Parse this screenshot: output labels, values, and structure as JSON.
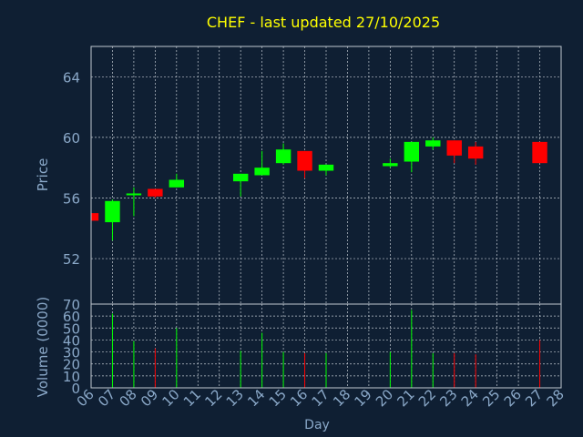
{
  "chart_data": [
    {
      "type": "candlestick",
      "title": "CHEF - last updated 27/10/2025",
      "ylabel": "Price",
      "xlabel": "",
      "ylim": [
        49,
        66
      ],
      "yticks": [
        52,
        56,
        60,
        64
      ],
      "grid": true,
      "colors": {
        "up": "#00ff00",
        "down": "#ff0000"
      },
      "candles": [
        {
          "day": "06",
          "open": 55.0,
          "high": 55.0,
          "low": 54.5,
          "close": 54.5
        },
        {
          "day": "07",
          "open": 54.4,
          "high": 55.9,
          "low": 53.2,
          "close": 55.8
        },
        {
          "day": "08",
          "open": 56.2,
          "high": 56.7,
          "low": 54.8,
          "close": 56.3
        },
        {
          "day": "09",
          "open": 56.6,
          "high": 56.6,
          "low": 56.0,
          "close": 56.1
        },
        {
          "day": "10",
          "open": 56.7,
          "high": 57.6,
          "low": 56.7,
          "close": 57.2
        },
        {
          "day": "13",
          "open": 57.1,
          "high": 57.6,
          "low": 56.1,
          "close": 57.6
        },
        {
          "day": "14",
          "open": 57.5,
          "high": 59.1,
          "low": 57.5,
          "close": 58.0
        },
        {
          "day": "15",
          "open": 58.3,
          "high": 59.6,
          "low": 58.2,
          "close": 59.2
        },
        {
          "day": "16",
          "open": 59.1,
          "high": 59.1,
          "low": 57.3,
          "close": 57.8
        },
        {
          "day": "17",
          "open": 57.8,
          "high": 58.2,
          "low": 57.5,
          "close": 58.2
        },
        {
          "day": "20",
          "open": 58.1,
          "high": 58.6,
          "low": 58.0,
          "close": 58.3
        },
        {
          "day": "21",
          "open": 58.4,
          "high": 59.7,
          "low": 57.7,
          "close": 59.7
        },
        {
          "day": "22",
          "open": 59.4,
          "high": 60.0,
          "low": 59.2,
          "close": 59.8
        },
        {
          "day": "23",
          "open": 59.8,
          "high": 59.8,
          "low": 58.3,
          "close": 58.8
        },
        {
          "day": "24",
          "open": 59.4,
          "high": 59.7,
          "low": 58.2,
          "close": 58.6
        },
        {
          "day": "27",
          "open": 59.7,
          "high": 59.7,
          "low": 58.3,
          "close": 58.3
        }
      ]
    },
    {
      "type": "bar",
      "ylabel": "Volume (0000)",
      "xlabel": "Day",
      "ylim": [
        0,
        70
      ],
      "yticks": [
        0,
        10,
        20,
        30,
        40,
        50,
        60,
        70
      ],
      "grid": true,
      "categories": [
        "06",
        "07",
        "08",
        "09",
        "10",
        "11",
        "12",
        "13",
        "14",
        "15",
        "16",
        "17",
        "18",
        "19",
        "20",
        "21",
        "22",
        "23",
        "24",
        "25",
        "26",
        "27",
        "28"
      ],
      "bars": [
        {
          "day": "07",
          "value": 62,
          "color": "#00ff00"
        },
        {
          "day": "08",
          "value": 39,
          "color": "#00ff00"
        },
        {
          "day": "09",
          "value": 33,
          "color": "#ff0000"
        },
        {
          "day": "10",
          "value": 50,
          "color": "#00ff00"
        },
        {
          "day": "13",
          "value": 31,
          "color": "#00ff00"
        },
        {
          "day": "14",
          "value": 46,
          "color": "#00ff00"
        },
        {
          "day": "15",
          "value": 30,
          "color": "#00ff00"
        },
        {
          "day": "16",
          "value": 29,
          "color": "#ff0000"
        },
        {
          "day": "17",
          "value": 29,
          "color": "#00ff00"
        },
        {
          "day": "20",
          "value": 30,
          "color": "#00ff00"
        },
        {
          "day": "21",
          "value": 65,
          "color": "#00ff00"
        },
        {
          "day": "22",
          "value": 29,
          "color": "#00ff00"
        },
        {
          "day": "23",
          "value": 29,
          "color": "#ff0000"
        },
        {
          "day": "24",
          "value": 28,
          "color": "#ff0000"
        },
        {
          "day": "27",
          "value": 40,
          "color": "#ff0000"
        }
      ]
    }
  ],
  "style": {
    "background": "#0f1f33",
    "title_color": "#ffff00",
    "axis_text_color": "#8aa8c8",
    "frame_color": "#c0c8d0",
    "grid_color": "#c0c8d0"
  }
}
